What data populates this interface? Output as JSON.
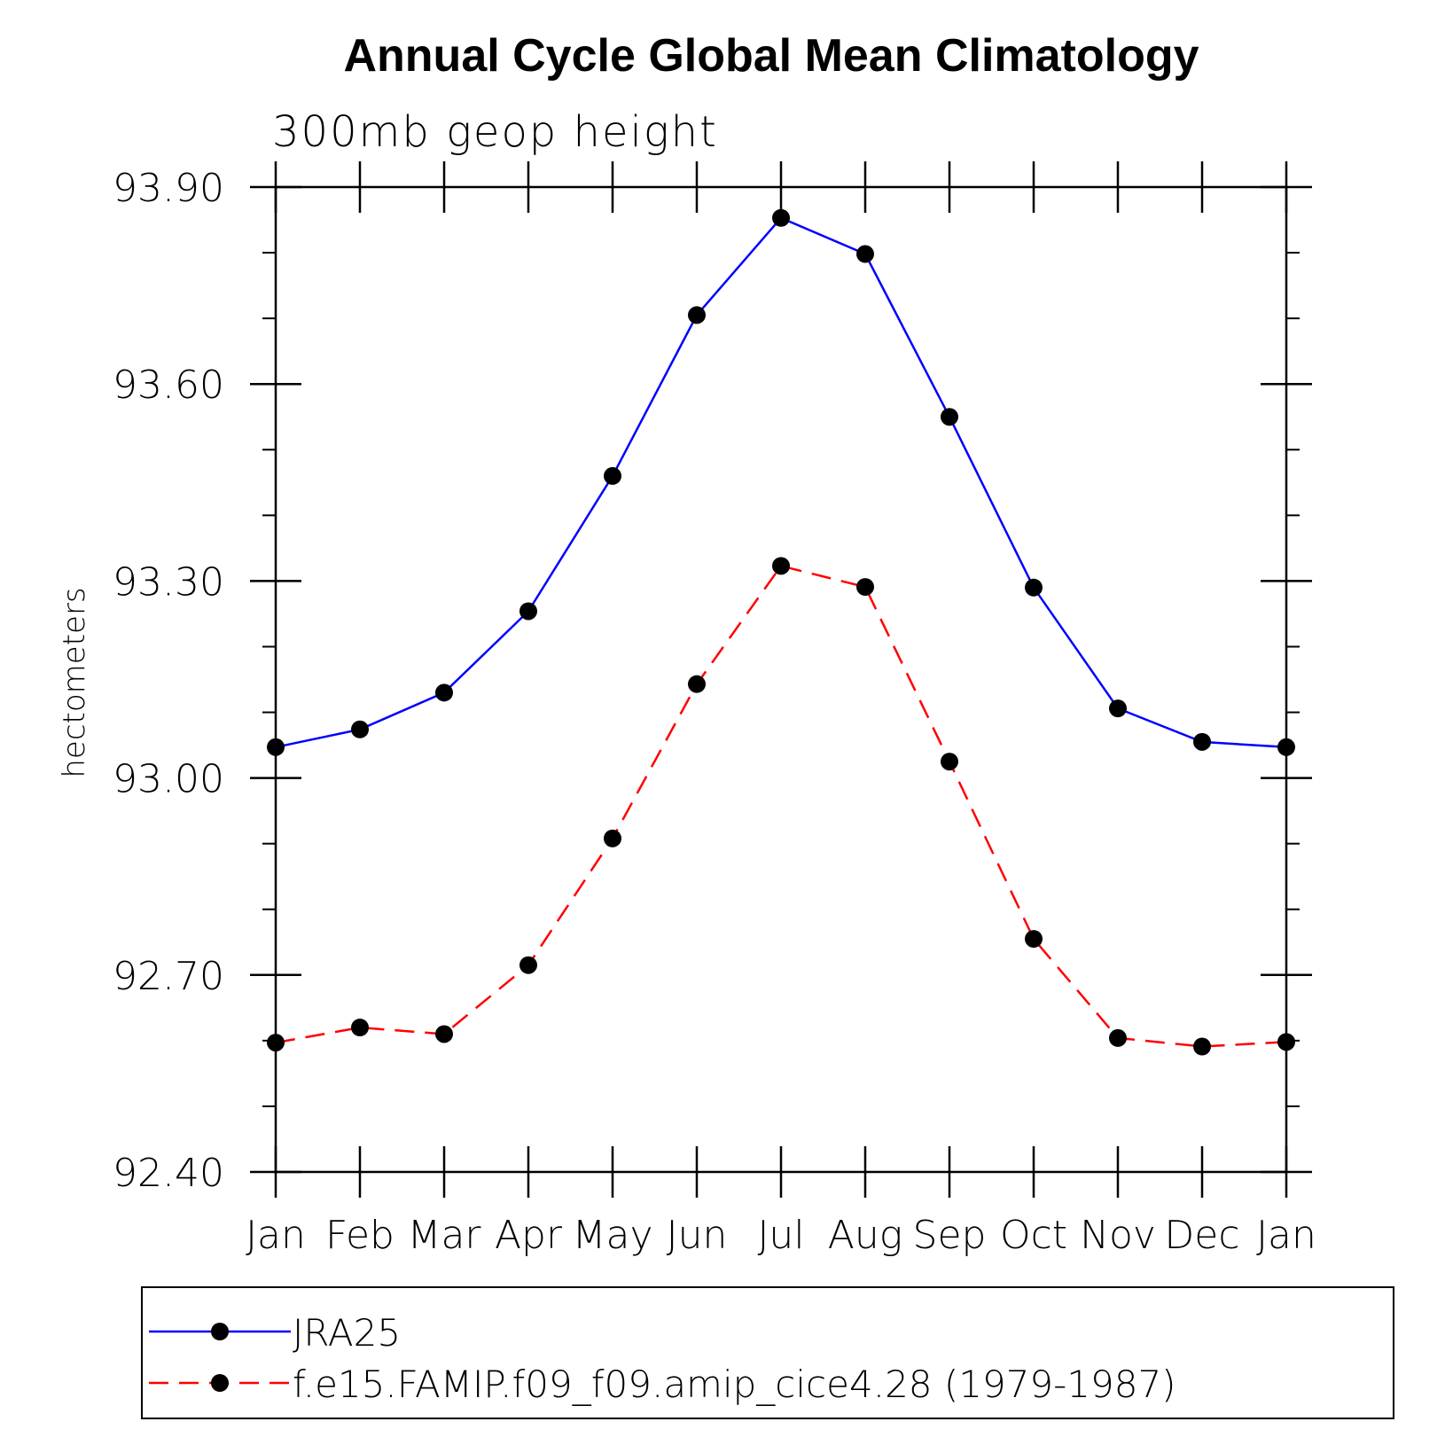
{
  "chart_data": {
    "type": "line",
    "title": "Annual Cycle Global Mean Climatology",
    "subtitle": "300mb  geop  height",
    "xlabel": "",
    "ylabel": "hectometers",
    "categories": [
      "Jan",
      "Feb",
      "Mar",
      "Apr",
      "May",
      "Jun",
      "Jul",
      "Aug",
      "Sep",
      "Oct",
      "Nov",
      "Dec",
      "Jan"
    ],
    "ylim": [
      92.4,
      93.9
    ],
    "yticks": [
      "93.90",
      "93.60",
      "93.30",
      "93.00",
      "92.70",
      "92.40"
    ],
    "ytick_values": [
      93.9,
      93.6,
      93.3,
      93.0,
      92.7,
      92.4
    ],
    "grid": false,
    "legend_position": "bottom",
    "series": [
      {
        "name": "JRA25",
        "color": "#0000ff",
        "dash": "solid",
        "marker": "filled-circle",
        "values": [
          93.047,
          93.074,
          93.13,
          93.254,
          93.46,
          93.705,
          93.853,
          93.798,
          93.55,
          93.29,
          93.106,
          93.055,
          93.047
        ]
      },
      {
        "name": "f.e15.FAMIP.f09_f09.amip_cice4.28 (1979-1987)",
        "color": "#ff0000",
        "dash": "dashed",
        "marker": "filled-circle",
        "values": [
          92.597,
          92.62,
          92.61,
          92.715,
          92.908,
          93.143,
          93.323,
          93.291,
          93.025,
          92.755,
          92.604,
          92.591,
          92.598
        ]
      }
    ]
  }
}
